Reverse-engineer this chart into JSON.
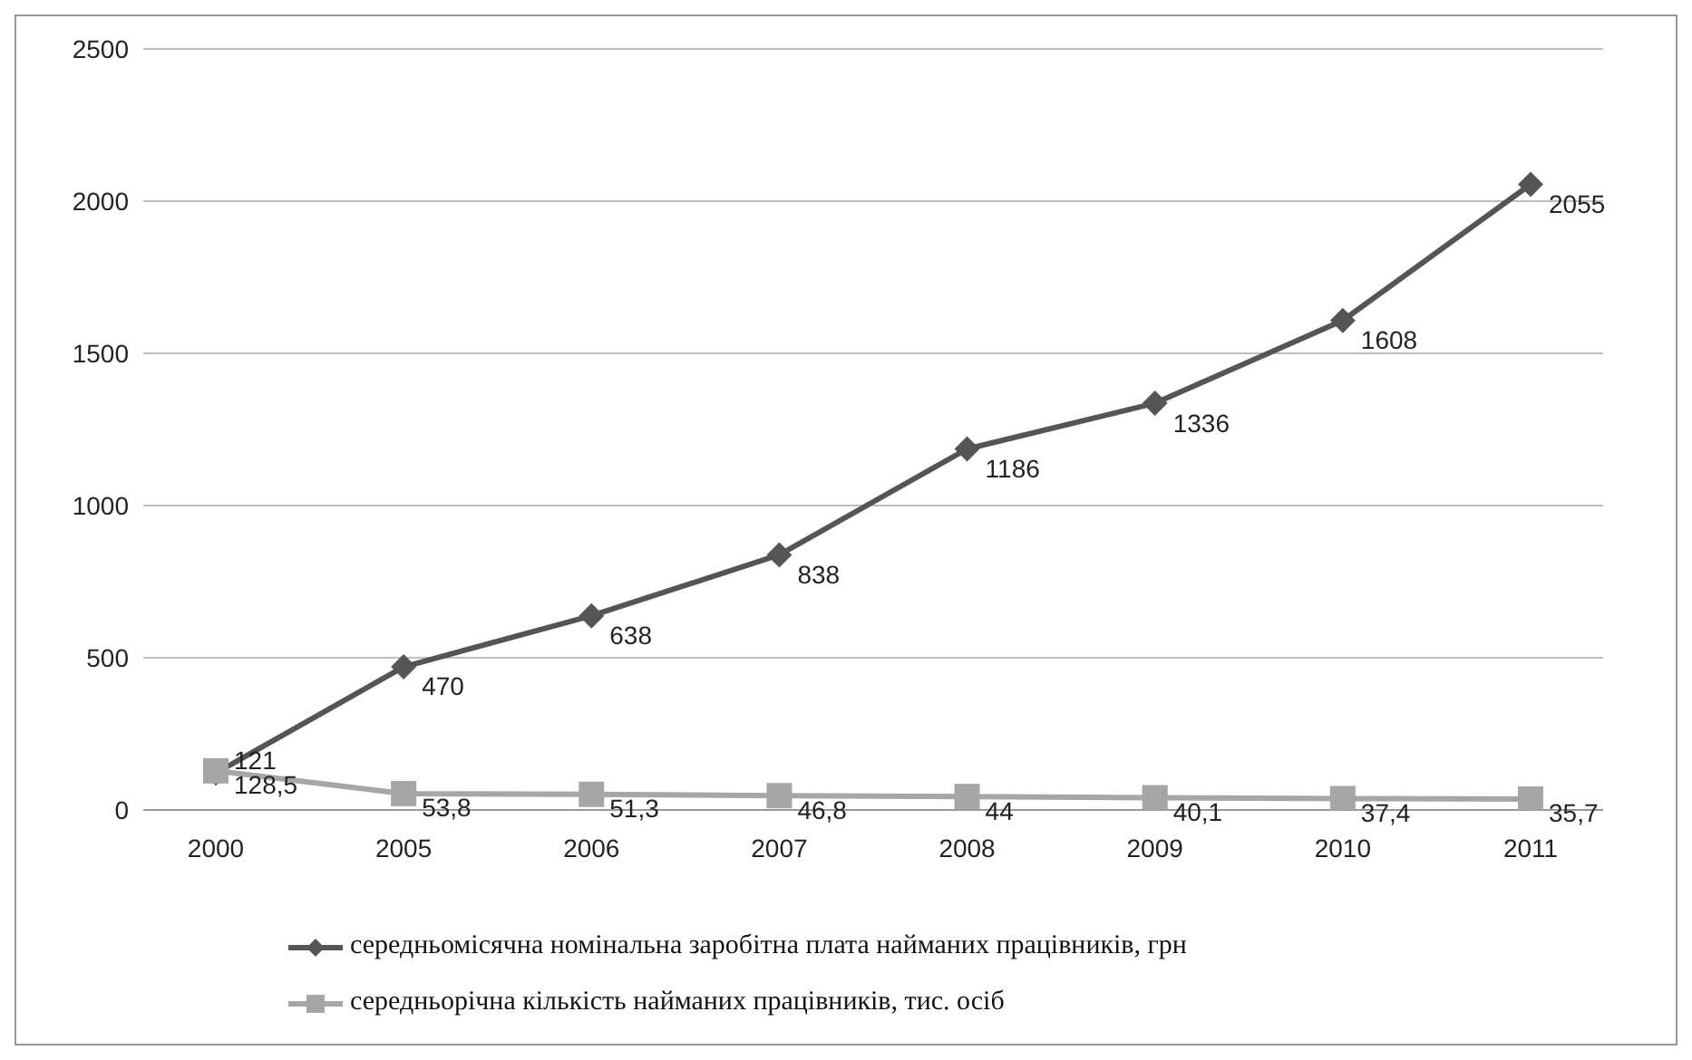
{
  "chart_data": {
    "type": "line",
    "categories": [
      "2000",
      "2005",
      "2006",
      "2007",
      "2008",
      "2009",
      "2010",
      "2011"
    ],
    "series": [
      {
        "name": "середньомісячна номінальна заробітна плата найманих працівників, грн",
        "color": "#555555",
        "marker": "diamond",
        "values": [
          121,
          470,
          638,
          838,
          1186,
          1336,
          1608,
          2055
        ],
        "value_labels": [
          "121",
          "470",
          "638",
          "838",
          "1186",
          "1336",
          "1608",
          "2055"
        ]
      },
      {
        "name": "середньорічна кількість найманих працівників, тис. осіб",
        "color": "#a6a6a6",
        "marker": "square",
        "values": [
          128.5,
          53.8,
          51.3,
          46.8,
          44,
          40.1,
          37.4,
          35.7
        ],
        "value_labels": [
          "128,5",
          "53,8",
          "51,3",
          "46,8",
          "44",
          "40,1",
          "37,4",
          "35,7"
        ]
      }
    ],
    "ylim": [
      0,
      2500
    ],
    "yticks": [
      0,
      500,
      1000,
      1500,
      2000,
      2500
    ],
    "grid": "y",
    "legend": "bottom"
  }
}
